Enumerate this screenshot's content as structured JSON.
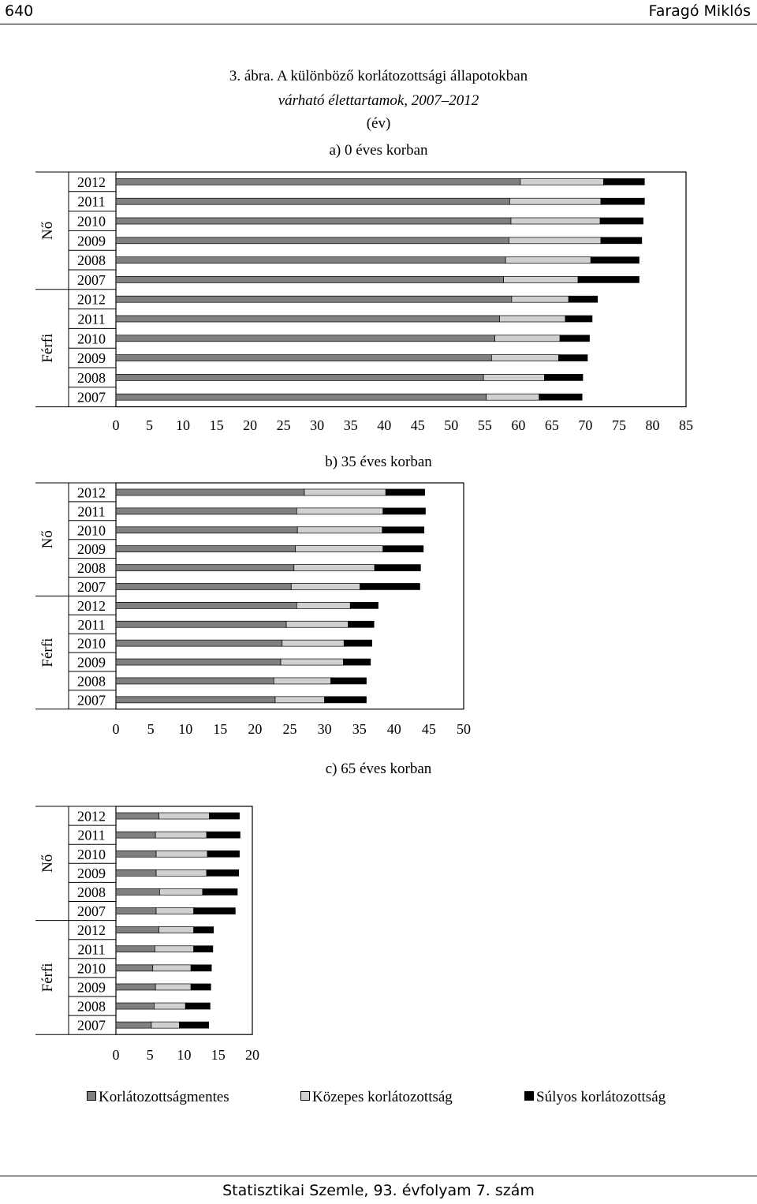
{
  "header": {
    "page_number": "640",
    "author": "Faragó Miklós"
  },
  "figure": {
    "number": "3. ábra.",
    "title_line1": "A különböző korlátozottsági állapotokban",
    "title_line2": "várható élettartamok, 2007–2012",
    "unit": "(év)"
  },
  "footer": {
    "journal": "Statisztikai Szemle, 93. évfolyam 7. szám"
  },
  "colors": {
    "korlatozottsagmentes": "#808080",
    "kozepes": "#d0d0d0",
    "sulyos": "#000000"
  },
  "chart_data": [
    {
      "type": "bar",
      "orientation": "horizontal",
      "stacked": true,
      "subtitle": "a) 0 éves korban",
      "groups": [
        "Nő",
        "Férfi"
      ],
      "categories": [
        "2012",
        "2011",
        "2010",
        "2009",
        "2008",
        "2007",
        "2012",
        "2011",
        "2010",
        "2009",
        "2008",
        "2007"
      ],
      "series": [
        {
          "name": "Korlátozottságmentes",
          "values": [
            60.3,
            58.7,
            58.9,
            58.6,
            58.1,
            57.8,
            59.0,
            57.2,
            56.5,
            56.0,
            54.8,
            55.2
          ]
        },
        {
          "name": "Közepes korlátozottság",
          "values": [
            12.4,
            13.6,
            13.3,
            13.7,
            12.7,
            11.1,
            8.5,
            9.8,
            9.7,
            10.0,
            9.1,
            7.9
          ]
        },
        {
          "name": "Súlyos korlátozottság",
          "values": [
            6.1,
            6.5,
            6.4,
            6.1,
            7.2,
            9.1,
            4.3,
            4.0,
            4.4,
            4.3,
            5.7,
            6.4
          ]
        }
      ],
      "xticks": [
        0,
        5,
        10,
        15,
        20,
        25,
        30,
        35,
        40,
        45,
        50,
        55,
        60,
        65,
        70,
        75,
        80,
        85
      ],
      "xlim": [
        0,
        85
      ],
      "grid": false
    },
    {
      "type": "bar",
      "orientation": "horizontal",
      "stacked": true,
      "subtitle": "b) 35 éves korban",
      "groups": [
        "Nő",
        "Férfi"
      ],
      "categories": [
        "2012",
        "2011",
        "2010",
        "2009",
        "2008",
        "2007",
        "2012",
        "2011",
        "2010",
        "2009",
        "2008",
        "2007"
      ],
      "series": [
        {
          "name": "Korlátozottságmentes",
          "values": [
            27.1,
            26.0,
            26.1,
            25.8,
            25.6,
            25.2,
            26.0,
            24.5,
            23.9,
            23.7,
            22.7,
            22.9
          ]
        },
        {
          "name": "Közepes korlátozottság",
          "values": [
            11.7,
            12.4,
            12.2,
            12.6,
            11.6,
            9.9,
            7.7,
            8.9,
            8.9,
            9.0,
            8.2,
            7.1
          ]
        },
        {
          "name": "Súlyos korlátozottság",
          "values": [
            5.6,
            6.1,
            6.0,
            5.8,
            6.6,
            8.6,
            4.0,
            3.7,
            4.0,
            3.9,
            5.1,
            6.0
          ]
        }
      ],
      "xticks": [
        0,
        5,
        10,
        15,
        20,
        25,
        30,
        35,
        40,
        45,
        50
      ],
      "xlim": [
        0,
        50
      ],
      "grid": false
    },
    {
      "type": "bar",
      "orientation": "horizontal",
      "stacked": true,
      "subtitle": "c) 65 éves korban",
      "groups": [
        "Nő",
        "Férfi"
      ],
      "categories": [
        "2012",
        "2011",
        "2010",
        "2009",
        "2008",
        "2007",
        "2012",
        "2011",
        "2010",
        "2009",
        "2008",
        "2007"
      ],
      "series": [
        {
          "name": "Korlátozottságmentes",
          "values": [
            6.3,
            5.8,
            5.9,
            5.9,
            6.4,
            5.9,
            6.3,
            5.7,
            5.4,
            5.8,
            5.6,
            5.2
          ]
        },
        {
          "name": "Közepes korlátozottság",
          "values": [
            7.4,
            7.5,
            7.5,
            7.4,
            6.3,
            5.5,
            5.1,
            5.7,
            5.6,
            5.2,
            4.6,
            4.1
          ]
        },
        {
          "name": "Súlyos korlátozottság",
          "values": [
            4.4,
            4.9,
            4.7,
            4.7,
            5.1,
            6.1,
            2.9,
            2.8,
            3.0,
            2.9,
            3.6,
            4.3
          ]
        }
      ],
      "xticks": [
        0,
        5,
        10,
        15,
        20
      ],
      "xlim": [
        0,
        20
      ],
      "grid": false
    }
  ],
  "legend": {
    "position": "bottom",
    "items": [
      {
        "label": "Korlátozottságmentes",
        "color": "#808080"
      },
      {
        "label": "Közepes korlátozottság",
        "color": "#d0d0d0"
      },
      {
        "label": "Súlyos korlátozottság",
        "color": "#000000"
      }
    ]
  }
}
